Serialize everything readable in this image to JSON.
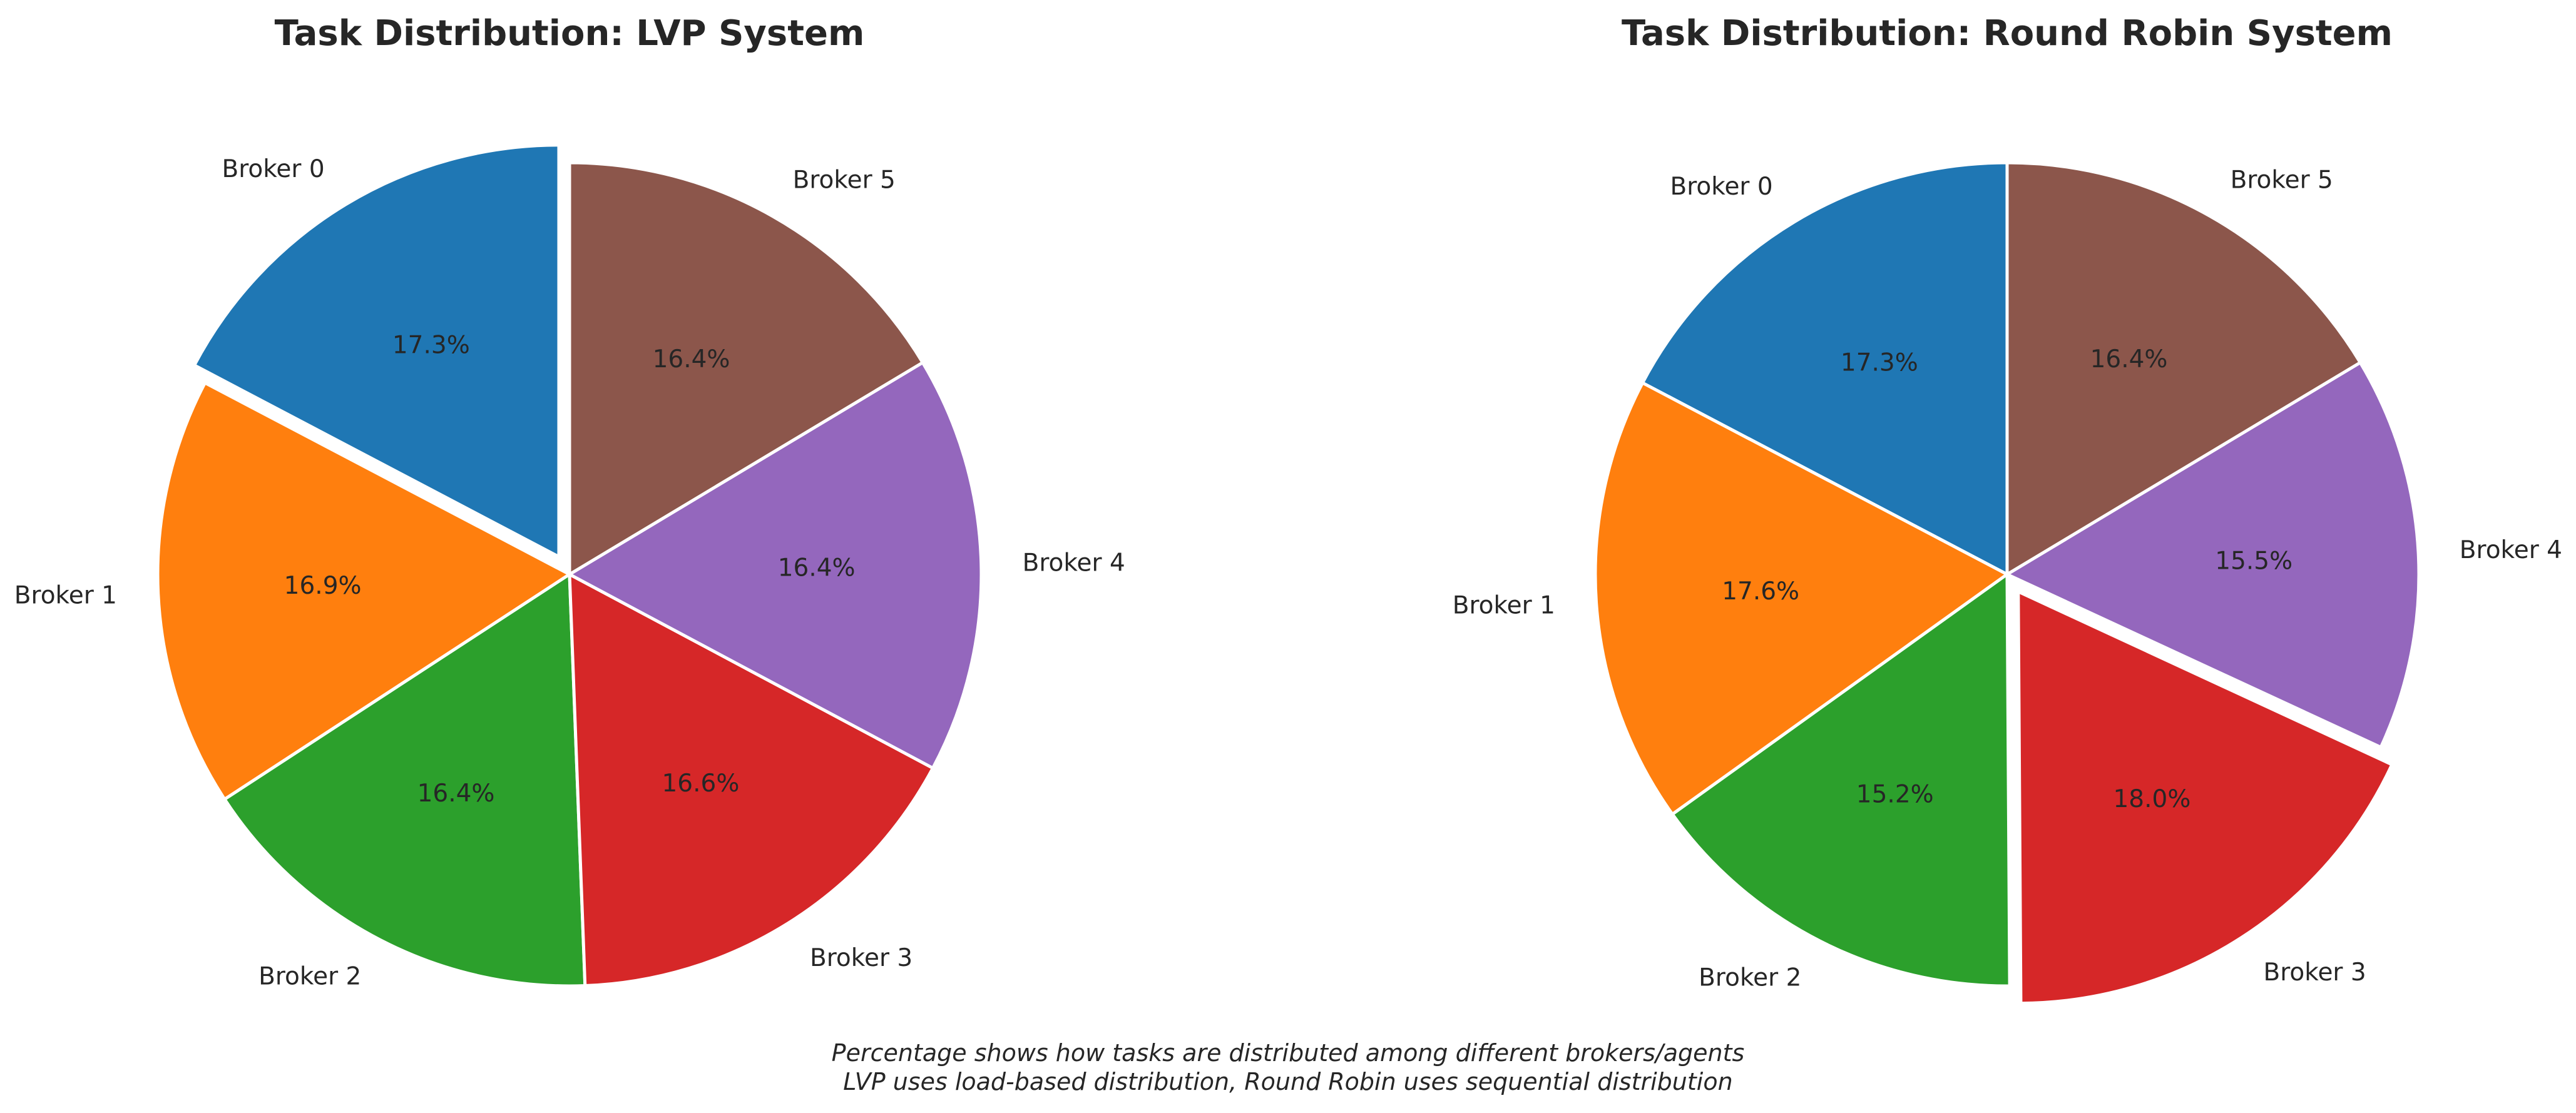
{
  "chart_data": [
    {
      "type": "pie",
      "title": "Task Distribution: LVP System",
      "categories": [
        "Broker 0",
        "Broker 1",
        "Broker 2",
        "Broker 3",
        "Broker 4",
        "Broker 5"
      ],
      "values": [
        17.3,
        16.9,
        16.4,
        16.6,
        16.4,
        16.4
      ],
      "percent_labels": [
        "17.3%",
        "16.9%",
        "16.4%",
        "16.6%",
        "16.4%",
        "16.4%"
      ],
      "colors": [
        "#1f77b4",
        "#ff7f0e",
        "#2ca02c",
        "#d62728",
        "#9467bd",
        "#8c564b"
      ],
      "exploded": "Broker 0",
      "start_angle_deg": 90,
      "direction": "counterclockwise"
    },
    {
      "type": "pie",
      "title": "Task Distribution: Round Robin System",
      "categories": [
        "Broker 0",
        "Broker 1",
        "Broker 2",
        "Broker 3",
        "Broker 4",
        "Broker 5"
      ],
      "values": [
        17.3,
        17.6,
        15.2,
        18.0,
        15.5,
        16.4
      ],
      "percent_labels": [
        "17.3%",
        "17.6%",
        "15.2%",
        "18.0%",
        "15.5%",
        "16.4%"
      ],
      "colors": [
        "#1f77b4",
        "#ff7f0e",
        "#2ca02c",
        "#d62728",
        "#9467bd",
        "#8c564b"
      ],
      "exploded": "Broker 3",
      "start_angle_deg": 90,
      "direction": "counterclockwise"
    }
  ],
  "caption": {
    "line1": "Percentage shows how tasks are distributed among different brokers/agents",
    "line2": "LVP uses load-based distribution, Round Robin uses sequential distribution"
  }
}
